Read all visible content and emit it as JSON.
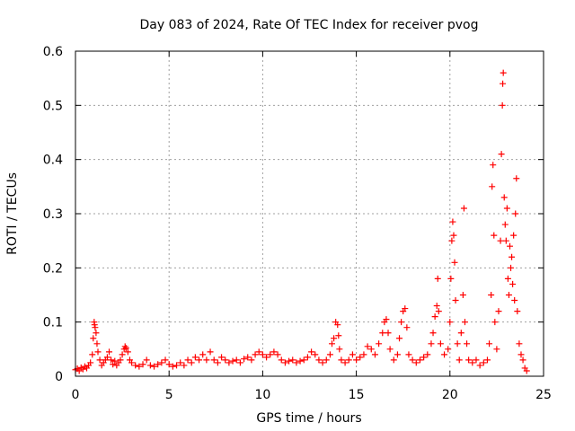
{
  "chart_data": {
    "type": "scatter",
    "title": "Day 083 of 2024, Rate Of TEC Index for receiver pvog",
    "xlabel": "GPS time / hours",
    "ylabel": "ROTI / TECUs",
    "xlim": [
      0,
      25
    ],
    "ylim": [
      0,
      0.6
    ],
    "xticks": [
      0,
      5,
      10,
      15,
      20,
      25
    ],
    "xtick_labels": [
      "0",
      "5",
      "10",
      "15",
      "20",
      "25"
    ],
    "yticks": [
      0,
      0.1,
      0.2,
      0.3,
      0.4,
      0.5,
      0.6
    ],
    "ytick_labels": [
      "0",
      "0.1",
      "0.2",
      "0.3",
      "0.4",
      "0.5",
      "0.6"
    ],
    "grid": true,
    "marker": "plus",
    "color": "#ff0000",
    "points": [
      [
        0.0,
        0.012
      ],
      [
        0.1,
        0.014
      ],
      [
        0.2,
        0.01
      ],
      [
        0.3,
        0.016
      ],
      [
        0.4,
        0.013
      ],
      [
        0.5,
        0.018
      ],
      [
        0.6,
        0.015
      ],
      [
        0.7,
        0.02
      ],
      [
        0.8,
        0.025
      ],
      [
        0.9,
        0.04
      ],
      [
        0.95,
        0.07
      ],
      [
        1.0,
        0.1
      ],
      [
        1.02,
        0.095
      ],
      [
        1.05,
        0.09
      ],
      [
        1.1,
        0.08
      ],
      [
        1.15,
        0.06
      ],
      [
        1.2,
        0.045
      ],
      [
        1.3,
        0.03
      ],
      [
        1.4,
        0.02
      ],
      [
        1.5,
        0.025
      ],
      [
        1.6,
        0.03
      ],
      [
        1.7,
        0.035
      ],
      [
        1.8,
        0.045
      ],
      [
        1.9,
        0.03
      ],
      [
        2.0,
        0.022
      ],
      [
        2.1,
        0.028
      ],
      [
        2.2,
        0.02
      ],
      [
        2.3,
        0.025
      ],
      [
        2.4,
        0.03
      ],
      [
        2.5,
        0.04
      ],
      [
        2.6,
        0.05
      ],
      [
        2.65,
        0.055
      ],
      [
        2.7,
        0.052
      ],
      [
        2.8,
        0.045
      ],
      [
        2.9,
        0.03
      ],
      [
        3.0,
        0.025
      ],
      [
        3.2,
        0.02
      ],
      [
        3.4,
        0.018
      ],
      [
        3.6,
        0.022
      ],
      [
        3.8,
        0.03
      ],
      [
        4.0,
        0.02
      ],
      [
        4.2,
        0.018
      ],
      [
        4.4,
        0.022
      ],
      [
        4.6,
        0.025
      ],
      [
        4.8,
        0.03
      ],
      [
        5.0,
        0.022
      ],
      [
        5.2,
        0.018
      ],
      [
        5.4,
        0.02
      ],
      [
        5.6,
        0.025
      ],
      [
        5.8,
        0.02
      ],
      [
        6.0,
        0.03
      ],
      [
        6.2,
        0.025
      ],
      [
        6.4,
        0.035
      ],
      [
        6.6,
        0.03
      ],
      [
        6.8,
        0.04
      ],
      [
        7.0,
        0.03
      ],
      [
        7.2,
        0.045
      ],
      [
        7.4,
        0.03
      ],
      [
        7.6,
        0.025
      ],
      [
        7.8,
        0.035
      ],
      [
        8.0,
        0.03
      ],
      [
        8.2,
        0.025
      ],
      [
        8.4,
        0.028
      ],
      [
        8.6,
        0.03
      ],
      [
        8.8,
        0.025
      ],
      [
        9.0,
        0.032
      ],
      [
        9.2,
        0.035
      ],
      [
        9.4,
        0.03
      ],
      [
        9.6,
        0.04
      ],
      [
        9.8,
        0.045
      ],
      [
        10.0,
        0.04
      ],
      [
        10.2,
        0.035
      ],
      [
        10.4,
        0.04
      ],
      [
        10.6,
        0.045
      ],
      [
        10.8,
        0.04
      ],
      [
        11.0,
        0.03
      ],
      [
        11.2,
        0.025
      ],
      [
        11.4,
        0.028
      ],
      [
        11.6,
        0.03
      ],
      [
        11.8,
        0.025
      ],
      [
        12.0,
        0.028
      ],
      [
        12.2,
        0.03
      ],
      [
        12.4,
        0.035
      ],
      [
        12.6,
        0.045
      ],
      [
        12.8,
        0.04
      ],
      [
        13.0,
        0.03
      ],
      [
        13.2,
        0.025
      ],
      [
        13.4,
        0.03
      ],
      [
        13.6,
        0.04
      ],
      [
        13.7,
        0.06
      ],
      [
        13.8,
        0.07
      ],
      [
        13.9,
        0.1
      ],
      [
        14.0,
        0.095
      ],
      [
        14.05,
        0.075
      ],
      [
        14.1,
        0.05
      ],
      [
        14.2,
        0.03
      ],
      [
        14.4,
        0.025
      ],
      [
        14.6,
        0.03
      ],
      [
        14.8,
        0.04
      ],
      [
        15.0,
        0.03
      ],
      [
        15.2,
        0.035
      ],
      [
        15.4,
        0.04
      ],
      [
        15.6,
        0.055
      ],
      [
        15.8,
        0.05
      ],
      [
        16.0,
        0.04
      ],
      [
        16.2,
        0.06
      ],
      [
        16.4,
        0.08
      ],
      [
        16.5,
        0.1
      ],
      [
        16.6,
        0.105
      ],
      [
        16.7,
        0.08
      ],
      [
        16.8,
        0.05
      ],
      [
        17.0,
        0.03
      ],
      [
        17.2,
        0.04
      ],
      [
        17.3,
        0.07
      ],
      [
        17.4,
        0.1
      ],
      [
        17.5,
        0.12
      ],
      [
        17.6,
        0.125
      ],
      [
        17.7,
        0.09
      ],
      [
        17.8,
        0.04
      ],
      [
        18.0,
        0.03
      ],
      [
        18.2,
        0.025
      ],
      [
        18.4,
        0.03
      ],
      [
        18.6,
        0.035
      ],
      [
        18.8,
        0.04
      ],
      [
        19.0,
        0.06
      ],
      [
        19.1,
        0.08
      ],
      [
        19.2,
        0.11
      ],
      [
        19.3,
        0.13
      ],
      [
        19.35,
        0.18
      ],
      [
        19.4,
        0.12
      ],
      [
        19.5,
        0.06
      ],
      [
        19.7,
        0.04
      ],
      [
        19.9,
        0.05
      ],
      [
        20.0,
        0.1
      ],
      [
        20.05,
        0.18
      ],
      [
        20.1,
        0.25
      ],
      [
        20.15,
        0.285
      ],
      [
        20.2,
        0.26
      ],
      [
        20.25,
        0.21
      ],
      [
        20.3,
        0.14
      ],
      [
        20.4,
        0.06
      ],
      [
        20.5,
        0.03
      ],
      [
        20.6,
        0.08
      ],
      [
        20.7,
        0.15
      ],
      [
        20.75,
        0.31
      ],
      [
        20.8,
        0.1
      ],
      [
        20.9,
        0.06
      ],
      [
        21.0,
        0.03
      ],
      [
        21.2,
        0.025
      ],
      [
        21.4,
        0.03
      ],
      [
        21.6,
        0.02
      ],
      [
        21.8,
        0.025
      ],
      [
        22.0,
        0.03
      ],
      [
        22.1,
        0.06
      ],
      [
        22.2,
        0.15
      ],
      [
        22.25,
        0.35
      ],
      [
        22.3,
        0.39
      ],
      [
        22.35,
        0.26
      ],
      [
        22.4,
        0.1
      ],
      [
        22.5,
        0.05
      ],
      [
        22.6,
        0.12
      ],
      [
        22.7,
        0.25
      ],
      [
        22.75,
        0.41
      ],
      [
        22.8,
        0.5
      ],
      [
        22.82,
        0.54
      ],
      [
        22.85,
        0.56
      ],
      [
        22.9,
        0.33
      ],
      [
        22.95,
        0.28
      ],
      [
        23.0,
        0.25
      ],
      [
        23.05,
        0.31
      ],
      [
        23.1,
        0.18
      ],
      [
        23.15,
        0.15
      ],
      [
        23.2,
        0.24
      ],
      [
        23.25,
        0.2
      ],
      [
        23.3,
        0.22
      ],
      [
        23.35,
        0.17
      ],
      [
        23.4,
        0.26
      ],
      [
        23.45,
        0.14
      ],
      [
        23.5,
        0.3
      ],
      [
        23.55,
        0.365
      ],
      [
        23.6,
        0.12
      ],
      [
        23.7,
        0.06
      ],
      [
        23.8,
        0.04
      ],
      [
        23.9,
        0.03
      ],
      [
        24.0,
        0.015
      ],
      [
        24.1,
        0.01
      ]
    ]
  }
}
